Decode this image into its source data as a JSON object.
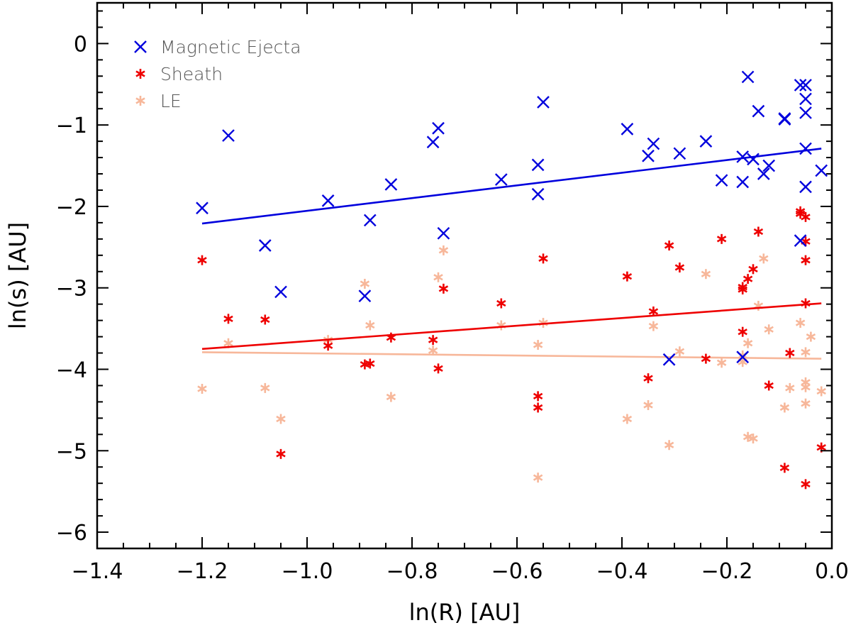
{
  "chart_data": {
    "type": "scatter",
    "xlabel": "ln(R) [AU]",
    "ylabel": "ln(s) [AU]",
    "xlim": [
      -1.4,
      0.0
    ],
    "ylim": [
      -6.2,
      0.5
    ],
    "xticks": [
      -1.4,
      -1.2,
      -1.0,
      -0.8,
      -0.6,
      -0.4,
      -0.2,
      0.0
    ],
    "xtick_labels": [
      "−1.4",
      "−1.2",
      "−1.0",
      "−0.8",
      "−0.6",
      "−0.4",
      "−0.2",
      "0.0"
    ],
    "yticks": [
      0,
      -1,
      -2,
      -3,
      -4,
      -5,
      -6
    ],
    "ytick_labels": [
      "0",
      "−1",
      "−2",
      "−3",
      "−4",
      "−5",
      "−6"
    ],
    "grid": false,
    "legend_position": "top-left",
    "series": [
      {
        "name": "Magnetic Ejecta",
        "marker": "x",
        "color": "#0000dd",
        "points": [
          [
            -1.2,
            -2.02
          ],
          [
            -1.15,
            -1.13
          ],
          [
            -1.08,
            -2.48
          ],
          [
            -1.05,
            -3.05
          ],
          [
            -0.96,
            -1.93
          ],
          [
            -0.89,
            -3.1
          ],
          [
            -0.88,
            -2.17
          ],
          [
            -0.84,
            -1.73
          ],
          [
            -0.76,
            -1.21
          ],
          [
            -0.75,
            -1.04
          ],
          [
            -0.74,
            -2.33
          ],
          [
            -0.63,
            -1.67
          ],
          [
            -0.56,
            -1.49
          ],
          [
            -0.56,
            -1.85
          ],
          [
            -0.55,
            -0.72
          ],
          [
            -0.39,
            -1.05
          ],
          [
            -0.35,
            -1.38
          ],
          [
            -0.34,
            -1.23
          ],
          [
            -0.31,
            -3.88
          ],
          [
            -0.29,
            -1.35
          ],
          [
            -0.24,
            -1.2
          ],
          [
            -0.21,
            -1.68
          ],
          [
            -0.17,
            -1.7
          ],
          [
            -0.17,
            -1.39
          ],
          [
            -0.17,
            -3.85
          ],
          [
            -0.16,
            -0.41
          ],
          [
            -0.15,
            -1.42
          ],
          [
            -0.14,
            -0.83
          ],
          [
            -0.13,
            -1.6
          ],
          [
            -0.12,
            -1.5
          ],
          [
            -0.09,
            -0.93
          ],
          [
            -0.09,
            -0.92
          ],
          [
            -0.06,
            -2.42
          ],
          [
            -0.06,
            -0.51
          ],
          [
            -0.05,
            -0.51
          ],
          [
            -0.05,
            -0.68
          ],
          [
            -0.05,
            -0.85
          ],
          [
            -0.05,
            -1.29
          ],
          [
            -0.05,
            -1.76
          ],
          [
            -0.02,
            -1.56
          ]
        ],
        "fit": {
          "x": [
            -1.2,
            -0.02
          ],
          "y": [
            -2.21,
            -1.29
          ]
        }
      },
      {
        "name": "Sheath",
        "marker": "asterisk",
        "color": "#ee0000",
        "points": [
          [
            -1.2,
            -2.66
          ],
          [
            -1.15,
            -3.38
          ],
          [
            -1.08,
            -3.39
          ],
          [
            -1.05,
            -5.04
          ],
          [
            -0.96,
            -3.71
          ],
          [
            -0.89,
            -3.94
          ],
          [
            -0.88,
            -3.93
          ],
          [
            -0.84,
            -3.61
          ],
          [
            -0.76,
            -3.64
          ],
          [
            -0.75,
            -3.99
          ],
          [
            -0.74,
            -3.01
          ],
          [
            -0.63,
            -3.19
          ],
          [
            -0.56,
            -4.33
          ],
          [
            -0.56,
            -4.47
          ],
          [
            -0.55,
            -2.64
          ],
          [
            -0.39,
            -2.86
          ],
          [
            -0.35,
            -4.11
          ],
          [
            -0.34,
            -3.29
          ],
          [
            -0.31,
            -2.48
          ],
          [
            -0.29,
            -2.75
          ],
          [
            -0.24,
            -3.87
          ],
          [
            -0.21,
            -2.4
          ],
          [
            -0.17,
            -3.02
          ],
          [
            -0.17,
            -2.99
          ],
          [
            -0.17,
            -3.54
          ],
          [
            -0.16,
            -2.89
          ],
          [
            -0.15,
            -2.77
          ],
          [
            -0.14,
            -2.31
          ],
          [
            -0.12,
            -4.2
          ],
          [
            -0.09,
            -5.21
          ],
          [
            -0.08,
            -3.8
          ],
          [
            -0.06,
            -2.06
          ],
          [
            -0.06,
            -2.09
          ],
          [
            -0.05,
            -2.13
          ],
          [
            -0.05,
            -2.43
          ],
          [
            -0.05,
            -2.66
          ],
          [
            -0.05,
            -3.19
          ],
          [
            -0.05,
            -5.41
          ],
          [
            -0.02,
            -4.96
          ]
        ],
        "fit": {
          "x": [
            -1.2,
            -0.02
          ],
          "y": [
            -3.75,
            -3.19
          ]
        }
      },
      {
        "name": "LE",
        "marker": "asterisk",
        "color": "#f7b79a",
        "points": [
          [
            -1.2,
            -4.24
          ],
          [
            -1.15,
            -3.68
          ],
          [
            -1.08,
            -4.23
          ],
          [
            -1.05,
            -4.61
          ],
          [
            -0.96,
            -3.64
          ],
          [
            -0.89,
            -2.95
          ],
          [
            -0.88,
            -3.46
          ],
          [
            -0.84,
            -4.34
          ],
          [
            -0.76,
            -3.77
          ],
          [
            -0.75,
            -2.87
          ],
          [
            -0.74,
            -2.54
          ],
          [
            -0.63,
            -3.46
          ],
          [
            -0.56,
            -3.7
          ],
          [
            -0.56,
            -5.33
          ],
          [
            -0.55,
            -3.43
          ],
          [
            -0.39,
            -4.61
          ],
          [
            -0.35,
            -4.44
          ],
          [
            -0.34,
            -3.47
          ],
          [
            -0.31,
            -4.93
          ],
          [
            -0.29,
            -3.78
          ],
          [
            -0.24,
            -2.83
          ],
          [
            -0.21,
            -3.92
          ],
          [
            -0.17,
            -3.83
          ],
          [
            -0.17,
            -3.91
          ],
          [
            -0.16,
            -3.68
          ],
          [
            -0.16,
            -4.83
          ],
          [
            -0.15,
            -4.85
          ],
          [
            -0.14,
            -3.22
          ],
          [
            -0.13,
            -2.64
          ],
          [
            -0.12,
            -3.51
          ],
          [
            -0.09,
            -4.47
          ],
          [
            -0.08,
            -4.23
          ],
          [
            -0.06,
            -3.43
          ],
          [
            -0.05,
            -4.16
          ],
          [
            -0.05,
            -4.22
          ],
          [
            -0.05,
            -4.42
          ],
          [
            -0.05,
            -3.79
          ],
          [
            -0.05,
            -2.66
          ],
          [
            -0.04,
            -3.6
          ],
          [
            -0.02,
            -4.27
          ]
        ],
        "fit": {
          "x": [
            -1.2,
            -0.02
          ],
          "y": [
            -3.79,
            -3.87
          ]
        }
      }
    ]
  }
}
